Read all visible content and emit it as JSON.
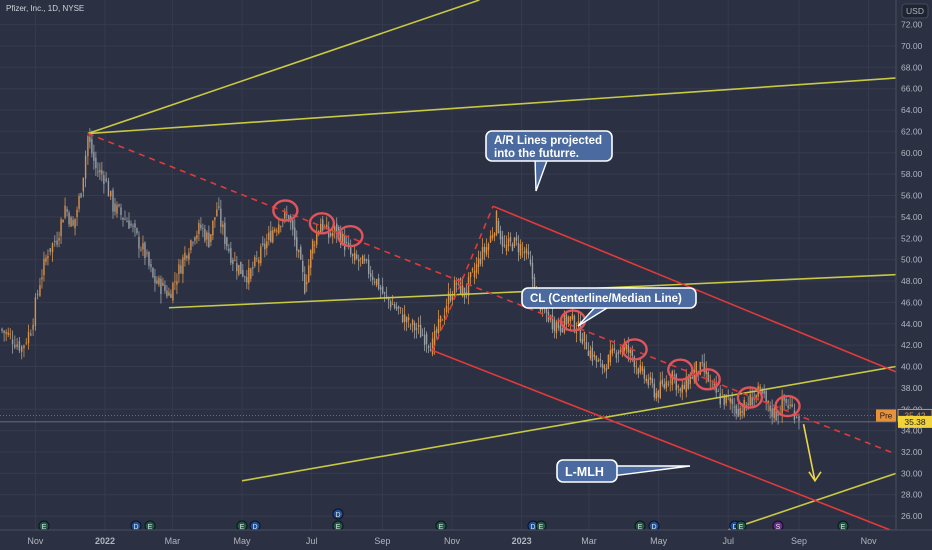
{
  "header": {
    "symbol_title": "Pfizer, Inc., 1D, NYSE",
    "currency": "USD"
  },
  "colors": {
    "background": "#2b3143",
    "grid": "#363c4e",
    "text": "#b2b5be",
    "yellow_lines": "#c8c843",
    "red_lines": "#e23a3a",
    "candle_up": "#d9924a",
    "candle_down": "#9aa0a6",
    "callout_bg": "#4a6aa0",
    "callout_border": "#ffffff",
    "circle": "#e0545a",
    "event_earnings": "#1f5a45",
    "event_dividend": "#1f4f9a",
    "event_split": "#6a2a8a"
  },
  "price_tags": {
    "pre_label": "Pre",
    "pre_value": "35.42",
    "close_value": "35.38"
  },
  "annotations": {
    "ar_lines": "A/R Lines projected into the futurre.",
    "cl_line": "CL (Centerline/Median Line)",
    "lmlh": "L-MLH"
  },
  "events": [
    {
      "x_label": "Nov",
      "type": "E"
    },
    {
      "x_label": "Mar",
      "type": "D"
    },
    {
      "x_label": "Mar",
      "type": "E"
    },
    {
      "x_label": "May",
      "type": "E"
    },
    {
      "x_label": "May",
      "type": "D"
    },
    {
      "x_label": "Jul",
      "type": "D"
    },
    {
      "x_label": "Jul",
      "type": "E"
    },
    {
      "x_label": "Nov",
      "type": "E"
    },
    {
      "x_label": "2023",
      "type": "D"
    },
    {
      "x_label": "2023",
      "type": "E"
    },
    {
      "x_label": "May",
      "type": "E"
    },
    {
      "x_label": "May",
      "type": "D"
    },
    {
      "x_label": "Jul",
      "type": "D"
    },
    {
      "x_label": "Jul",
      "type": "E"
    },
    {
      "x_label": "Sep",
      "type": "S"
    },
    {
      "x_label": "Nov",
      "type": "E"
    }
  ],
  "chart_data": {
    "type": "line",
    "title": "Pfizer, Inc., 1D, NYSE",
    "xlabel": "",
    "ylabel": "USD",
    "ylim": [
      24.7,
      74.3
    ],
    "x_ticks": [
      "Nov",
      "2022",
      "Mar",
      "May",
      "Jul",
      "Sep",
      "Nov",
      "2023",
      "Mar",
      "May",
      "Jul",
      "Sep",
      "Nov"
    ],
    "y_ticks": [
      26.0,
      28.0,
      30.0,
      32.0,
      34.0,
      36.0,
      38.0,
      40.0,
      42.0,
      44.0,
      46.0,
      48.0,
      50.0,
      52.0,
      54.0,
      56.0,
      58.0,
      60.0,
      62.0,
      64.0,
      66.0,
      68.0,
      70.0,
      72.0
    ],
    "series": [
      {
        "points": [
          [
            "2021-10-01",
            43.5
          ],
          [
            "2021-10-10",
            42.8
          ],
          [
            "2021-10-20",
            41.8
          ],
          [
            "2021-10-28",
            43.5
          ],
          [
            "2021-11-05",
            48.0
          ],
          [
            "2021-11-12",
            50.8
          ],
          [
            "2021-11-20",
            52.0
          ],
          [
            "2021-11-27",
            55.0
          ],
          [
            "2021-12-04",
            53.0
          ],
          [
            "2021-12-11",
            56.5
          ],
          [
            "2021-12-17",
            61.5
          ],
          [
            "2021-12-24",
            58.5
          ],
          [
            "2021-12-31",
            57.8
          ],
          [
            "2022-01-08",
            55.0
          ],
          [
            "2022-01-15",
            54.2
          ],
          [
            "2022-01-22",
            53.5
          ],
          [
            "2022-01-29",
            52.0
          ],
          [
            "2022-02-05",
            50.5
          ],
          [
            "2022-02-12",
            48.2
          ],
          [
            "2022-02-19",
            47.5
          ],
          [
            "2022-02-26",
            46.8
          ],
          [
            "2022-03-05",
            48.5
          ],
          [
            "2022-03-12",
            50.5
          ],
          [
            "2022-03-19",
            52.2
          ],
          [
            "2022-03-26",
            53.0
          ],
          [
            "2022-04-02",
            51.8
          ],
          [
            "2022-04-09",
            54.8
          ],
          [
            "2022-04-16",
            52.0
          ],
          [
            "2022-04-23",
            50.0
          ],
          [
            "2022-04-30",
            49.0
          ],
          [
            "2022-05-07",
            48.5
          ],
          [
            "2022-05-14",
            49.8
          ],
          [
            "2022-05-21",
            51.2
          ],
          [
            "2022-05-28",
            52.8
          ],
          [
            "2022-06-04",
            53.8
          ],
          [
            "2022-06-11",
            54.0
          ],
          [
            "2022-06-18",
            51.0
          ],
          [
            "2022-06-25",
            47.5
          ],
          [
            "2022-07-02",
            51.5
          ],
          [
            "2022-07-09",
            53.5
          ],
          [
            "2022-07-16",
            52.2
          ],
          [
            "2022-07-23",
            52.8
          ],
          [
            "2022-07-30",
            51.5
          ],
          [
            "2022-08-06",
            50.0
          ],
          [
            "2022-08-13",
            49.8
          ],
          [
            "2022-08-20",
            49.0
          ],
          [
            "2022-08-27",
            48.0
          ],
          [
            "2022-09-03",
            46.5
          ],
          [
            "2022-09-10",
            45.8
          ],
          [
            "2022-09-17",
            45.0
          ],
          [
            "2022-09-24",
            44.0
          ],
          [
            "2022-10-01",
            43.5
          ],
          [
            "2022-10-08",
            42.8
          ],
          [
            "2022-10-15",
            42.0
          ],
          [
            "2022-10-22",
            44.2
          ],
          [
            "2022-10-29",
            46.5
          ],
          [
            "2022-11-05",
            47.8
          ],
          [
            "2022-11-12",
            46.8
          ],
          [
            "2022-11-19",
            48.5
          ],
          [
            "2022-11-26",
            50.2
          ],
          [
            "2022-12-03",
            51.5
          ],
          [
            "2022-12-10",
            53.8
          ],
          [
            "2022-12-17",
            51.0
          ],
          [
            "2022-12-24",
            51.5
          ],
          [
            "2022-12-31",
            51.2
          ],
          [
            "2023-01-07",
            50.0
          ],
          [
            "2023-01-14",
            46.5
          ],
          [
            "2023-01-21",
            45.2
          ],
          [
            "2023-01-28",
            44.2
          ],
          [
            "2023-02-04",
            43.8
          ],
          [
            "2023-02-11",
            44.5
          ],
          [
            "2023-02-18",
            43.8
          ],
          [
            "2023-02-25",
            42.5
          ],
          [
            "2023-03-04",
            41.0
          ],
          [
            "2023-03-11",
            40.0
          ],
          [
            "2023-03-18",
            40.5
          ],
          [
            "2023-03-25",
            41.5
          ],
          [
            "2023-04-01",
            41.8
          ],
          [
            "2023-04-08",
            41.0
          ],
          [
            "2023-04-15",
            39.5
          ],
          [
            "2023-04-22",
            38.5
          ],
          [
            "2023-04-29",
            37.5
          ],
          [
            "2023-05-06",
            38.2
          ],
          [
            "2023-05-13",
            39.5
          ],
          [
            "2023-05-20",
            37.5
          ],
          [
            "2023-05-27",
            38.5
          ],
          [
            "2023-06-03",
            39.8
          ],
          [
            "2023-06-10",
            39.5
          ],
          [
            "2023-06-17",
            38.0
          ],
          [
            "2023-06-24",
            37.0
          ],
          [
            "2023-07-01",
            36.8
          ],
          [
            "2023-07-08",
            36.0
          ],
          [
            "2023-07-15",
            36.2
          ],
          [
            "2023-07-22",
            37.0
          ],
          [
            "2023-07-29",
            37.5
          ],
          [
            "2023-08-05",
            36.2
          ],
          [
            "2023-08-12",
            35.5
          ],
          [
            "2023-08-19",
            36.8
          ],
          [
            "2023-08-26",
            36.0
          ],
          [
            "2023-09-01",
            35.4
          ]
        ]
      }
    ],
    "pitchfork_lines": [
      {
        "role": "upper-yellow-top",
        "color": "yellow",
        "style": "solid",
        "from": [
          "2021-12-17",
          61.8
        ],
        "to": [
          "2022-11-25",
          74.3
        ]
      },
      {
        "role": "A/R line upper",
        "color": "yellow",
        "style": "solid",
        "from": [
          "2021-12-17",
          61.8
        ],
        "to": [
          "2023-11-25",
          67.0
        ]
      },
      {
        "role": "A/R line lower",
        "color": "yellow",
        "style": "solid",
        "from": [
          "2022-02-26",
          45.5
        ],
        "to": [
          "2023-11-25",
          48.6
        ]
      },
      {
        "role": "yellow lower parallel",
        "color": "yellow",
        "style": "solid",
        "from": [
          "2022-05-01",
          29.3
        ],
        "to": [
          "2023-11-25",
          40.0
        ]
      },
      {
        "role": "yellow bottom parallel",
        "color": "yellow",
        "style": "solid",
        "from": [
          "2023-07-01",
          24.7
        ],
        "to": [
          "2023-11-25",
          30.0
        ]
      },
      {
        "role": "CL red dashed",
        "color": "red",
        "style": "dashed",
        "from": [
          "2021-12-17",
          61.8
        ],
        "to": [
          "2023-11-25",
          31.8
        ]
      },
      {
        "role": "red upper ML parallel",
        "color": "red",
        "style": "solid",
        "from": [
          "2022-12-07",
          55.0
        ],
        "to": [
          "2023-11-25",
          39.5
        ]
      },
      {
        "role": "red lower L-MLH",
        "color": "red",
        "style": "solid",
        "from": [
          "2022-10-15",
          41.5
        ],
        "to": [
          "2023-11-20",
          24.7
        ]
      },
      {
        "role": "red dashed connector",
        "color": "red",
        "style": "dashed",
        "from": [
          "2022-10-15",
          41.5
        ],
        "to": [
          "2022-12-07",
          55.0
        ]
      }
    ],
    "highlight_circles": [
      [
        "2022-06-08",
        54.6
      ],
      [
        "2022-07-10",
        53.4
      ],
      [
        "2022-08-04",
        52.2
      ],
      [
        "2023-02-15",
        44.3
      ],
      [
        "2023-04-10",
        41.6
      ],
      [
        "2023-05-20",
        39.7
      ],
      [
        "2023-06-13",
        38.8
      ],
      [
        "2023-07-20",
        37.1
      ],
      [
        "2023-08-22",
        36.3
      ]
    ],
    "arrow": {
      "from": [
        "2023-09-05",
        34.6
      ],
      "to": [
        "2023-09-15",
        29.3
      ]
    },
    "legend": "none",
    "grid": true
  }
}
